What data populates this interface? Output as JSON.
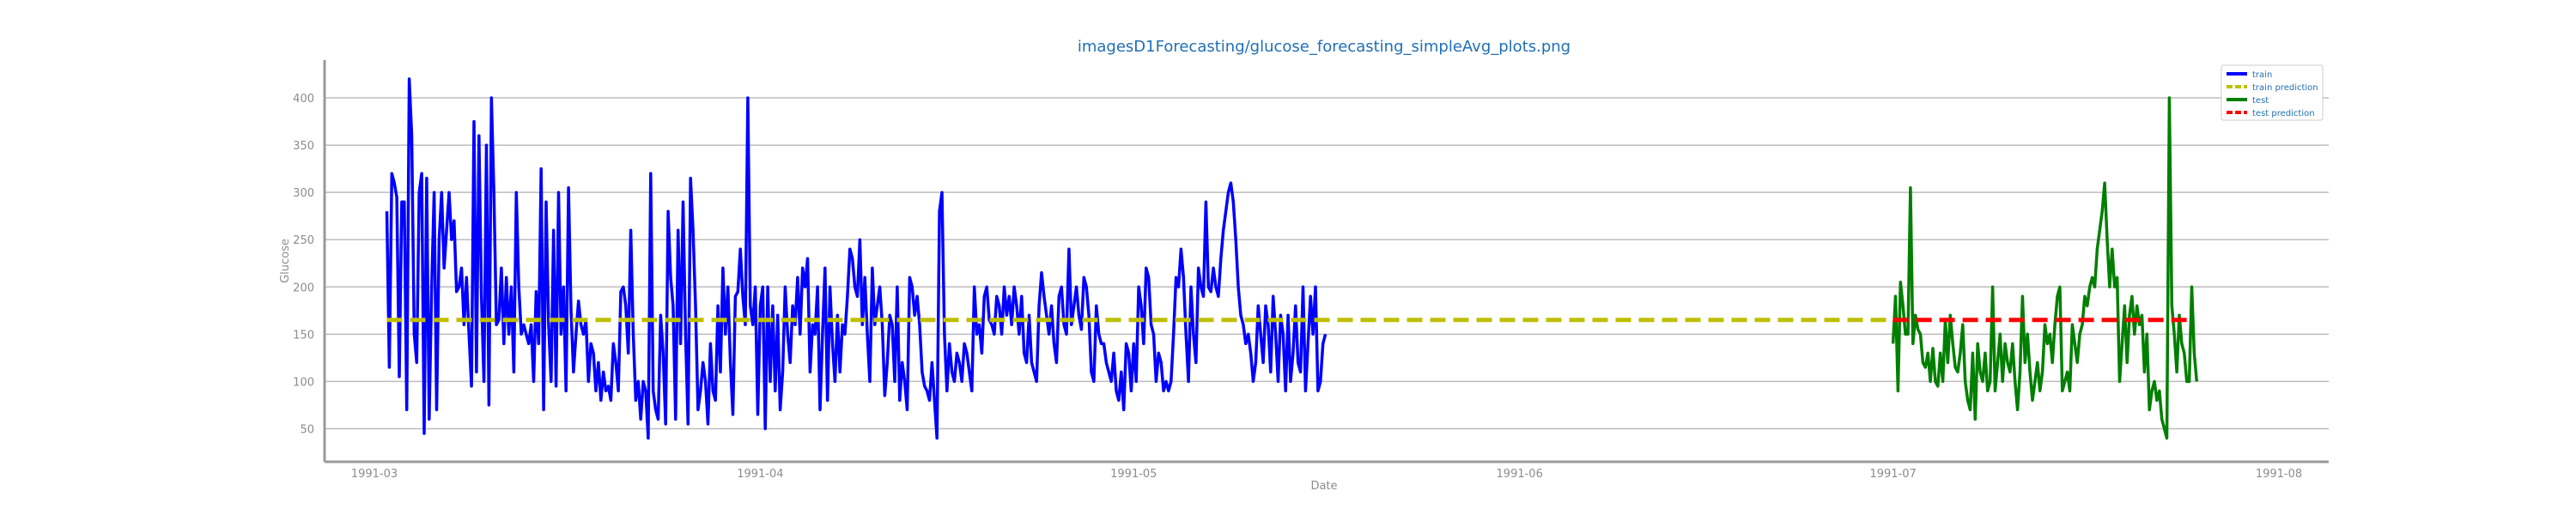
{
  "chart_data": {
    "type": "line",
    "title": "imagesD1Forecasting/glucose_forecasting_simpleAvg_plots.png",
    "xlabel": "Date",
    "ylabel": "Glucose",
    "x_ticks": [
      "1991-03",
      "1991-04",
      "1991-05",
      "1991-06",
      "1991-07",
      "1991-08"
    ],
    "x_range": [
      "1991-02-25",
      "1991-08-05"
    ],
    "y_ticks": [
      50,
      100,
      150,
      200,
      250,
      300,
      350,
      400
    ],
    "ylim": [
      15,
      440
    ],
    "grid": "horizontal",
    "legend_position": "top-right",
    "series": [
      {
        "name": "train",
        "color": "#0000ff",
        "style": "solid",
        "x_start": "1991-03-02",
        "step_days": 0.2,
        "values": [
          280,
          115,
          320,
          310,
          295,
          105,
          290,
          290,
          70,
          420,
          360,
          150,
          120,
          300,
          320,
          45,
          315,
          60,
          200,
          300,
          70,
          250,
          300,
          220,
          260,
          300,
          250,
          270,
          195,
          200,
          220,
          160,
          210,
          150,
          95,
          375,
          110,
          360,
          190,
          100,
          350,
          75,
          400,
          300,
          160,
          165,
          220,
          140,
          210,
          150,
          200,
          110,
          300,
          200,
          150,
          160,
          150,
          140,
          160,
          100,
          195,
          140,
          325,
          70,
          290,
          160,
          100,
          260,
          95,
          300,
          150,
          200,
          90,
          305,
          175,
          110,
          150,
          185,
          160,
          150,
          165,
          100,
          140,
          130,
          90,
          120,
          80,
          110,
          90,
          95,
          80,
          140,
          120,
          90,
          195,
          200,
          180,
          130,
          260,
          150,
          80,
          100,
          60,
          100,
          90,
          40,
          320,
          90,
          70,
          60,
          170,
          130,
          55,
          280,
          210,
          180,
          60,
          260,
          140,
          290,
          150,
          55,
          315,
          260,
          180,
          70,
          90,
          120,
          100,
          55,
          140,
          90,
          80,
          180,
          110,
          220,
          150,
          200,
          120,
          65,
          190,
          195,
          240,
          190,
          160,
          400,
          180,
          160,
          200,
          65,
          180,
          200,
          50,
          200,
          100,
          180,
          90,
          170,
          70,
          110,
          200,
          150,
          120,
          180,
          160,
          210,
          150,
          220,
          200,
          230,
          110,
          160,
          150,
          200,
          70,
          150,
          220,
          80,
          200,
          140,
          100,
          170,
          110,
          160,
          150,
          190,
          240,
          230,
          200,
          190,
          250,
          160,
          210,
          150,
          100,
          220,
          160,
          180,
          200,
          160,
          85,
          120,
          170,
          160,
          100,
          200,
          80,
          120,
          100,
          70,
          210,
          200,
          170,
          190,
          160,
          110,
          95,
          90,
          80,
          120,
          80,
          40,
          280,
          300,
          150,
          90,
          140,
          110,
          100,
          130,
          120,
          100,
          140,
          130,
          110,
          90,
          200,
          150,
          160,
          130,
          190,
          200,
          165,
          160,
          150,
          190,
          180,
          150,
          200,
          170,
          190,
          160,
          200,
          180,
          150,
          190,
          130,
          120,
          170,
          120,
          110,
          100,
          180,
          215,
          190,
          170,
          150,
          180,
          140,
          120,
          190,
          200,
          160,
          150,
          240,
          160,
          180,
          200,
          170,
          155,
          210,
          200,
          170,
          110,
          100,
          180,
          150,
          140,
          140,
          120,
          110,
          100,
          130,
          90,
          80,
          110,
          70,
          140,
          130,
          90,
          140,
          100,
          200,
          180,
          140,
          220,
          210,
          160,
          150,
          100,
          130,
          120,
          90,
          100,
          90,
          100,
          150,
          210,
          200,
          240,
          210,
          150,
          100,
          200,
          150,
          120,
          220,
          200,
          190,
          290,
          200,
          195,
          220,
          200,
          190,
          230,
          260,
          280,
          300,
          310,
          290,
          250,
          200,
          170,
          160,
          140,
          150,
          130,
          100,
          120,
          180,
          150,
          120,
          180,
          160,
          110,
          190,
          150,
          100,
          170,
          150,
          90,
          170,
          100,
          130,
          180,
          120,
          110,
          200,
          90,
          140,
          190,
          150,
          200,
          90,
          100,
          140,
          150
        ]
      },
      {
        "name": "train prediction",
        "color": "#bfbf00",
        "style": "dashed",
        "x": [
          "1991-03-02",
          "1991-07-01"
        ],
        "values": [
          165,
          165
        ]
      },
      {
        "name": "test",
        "color": "#007f00",
        "style": "solid",
        "x_start": "1991-07-01",
        "step_days": 0.2,
        "values": [
          140,
          190,
          90,
          205,
          180,
          150,
          150,
          305,
          140,
          170,
          155,
          150,
          120,
          115,
          130,
          100,
          135,
          100,
          95,
          130,
          100,
          165,
          120,
          170,
          140,
          115,
          110,
          130,
          160,
          100,
          80,
          70,
          130,
          60,
          140,
          110,
          100,
          130,
          90,
          100,
          200,
          90,
          120,
          150,
          100,
          140,
          120,
          110,
          140,
          100,
          70,
          110,
          190,
          120,
          150,
          110,
          80,
          100,
          120,
          90,
          110,
          160,
          140,
          150,
          120,
          160,
          190,
          200,
          90,
          100,
          110,
          90,
          160,
          140,
          120,
          150,
          160,
          190,
          180,
          200,
          210,
          200,
          240,
          260,
          280,
          310,
          250,
          200,
          240,
          200,
          210,
          100,
          140,
          180,
          120,
          170,
          190,
          150,
          180,
          160,
          170,
          110,
          150,
          70,
          90,
          100,
          80,
          90,
          60,
          50,
          40,
          400,
          180,
          150,
          110,
          170,
          140,
          130,
          100,
          100,
          200,
          130,
          100
        ]
      },
      {
        "name": "test prediction",
        "color": "#ff0000",
        "style": "dashed",
        "x": [
          "1991-07-01",
          "1991-07-25"
        ],
        "values": [
          165,
          165
        ]
      }
    ]
  }
}
